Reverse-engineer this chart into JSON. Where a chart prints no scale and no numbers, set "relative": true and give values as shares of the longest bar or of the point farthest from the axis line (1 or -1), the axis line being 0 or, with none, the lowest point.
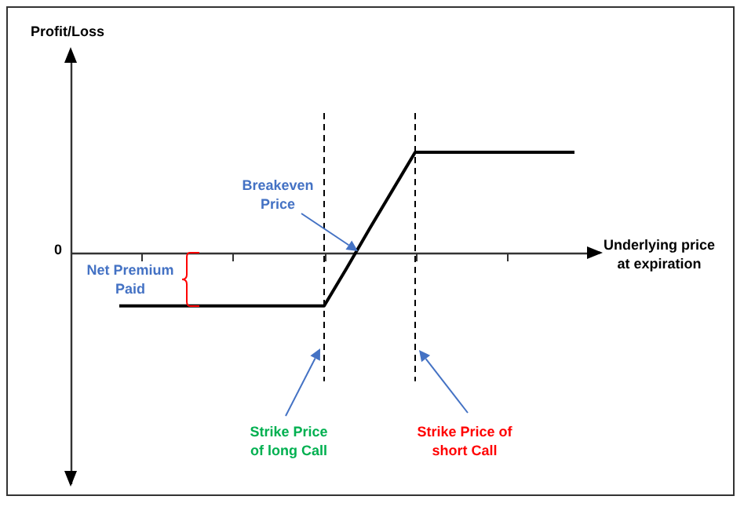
{
  "chart_data": {
    "type": "line",
    "relative": true,
    "xlabel": "Underlying price at expiration",
    "categories": [
      null,
      null,
      null,
      null,
      null,
      null,
      null,
      null,
      null,
      null,
      null,
      null,
      null,
      null,
      null,
      null,
      null,
      null,
      null,
      null,
      null
    ],
    "series": [
      {
        "color": "#000000",
        "values": [
          -0.53,
          -0.53,
          -0.53,
          -0.53,
          -0.53,
          -0.53,
          -0.53,
          -0.53,
          -0.53,
          -0.53,
          -0.15,
          0.24,
          0.62,
          1,
          1,
          1,
          1,
          1,
          1,
          1,
          1
        ]
      }
    ],
    "annotations": [
      "Profit/Loss",
      "0",
      "Net Premium Paid",
      "Breakeven Price",
      "Strike Price of long Call",
      "Strike Price of short Call"
    ],
    "grid": false,
    "marker": "none",
    "line_style": "solid"
  }
}
